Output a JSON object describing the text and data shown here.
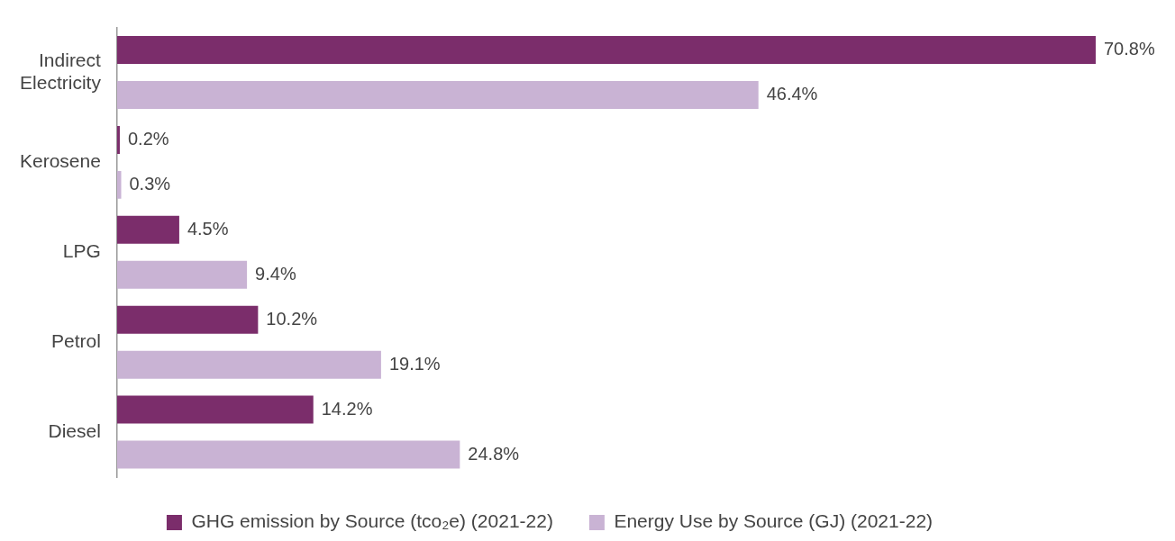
{
  "chart_data": {
    "type": "bar",
    "orientation": "horizontal",
    "categories": [
      "Indirect Electricity",
      "Kerosene",
      "LPG",
      "Petrol",
      "Diesel"
    ],
    "series": [
      {
        "name": "GHG emission by Source (tco₂e) (2021-22)",
        "color": "#7b2d6b",
        "values": [
          70.8,
          0.2,
          4.5,
          10.2,
          14.2
        ],
        "value_labels": [
          "70.8%",
          "0.2%",
          "4.5%",
          "10.2%",
          "14.2%"
        ]
      },
      {
        "name": "Energy Use by Source (GJ) (2021-22)",
        "color": "#c9b3d4",
        "values": [
          46.4,
          0.3,
          9.4,
          19.1,
          24.8
        ],
        "value_labels": [
          "46.4%",
          "0.3%",
          "9.4%",
          "19.1%",
          "24.8%"
        ]
      }
    ],
    "legend": "bottom"
  }
}
